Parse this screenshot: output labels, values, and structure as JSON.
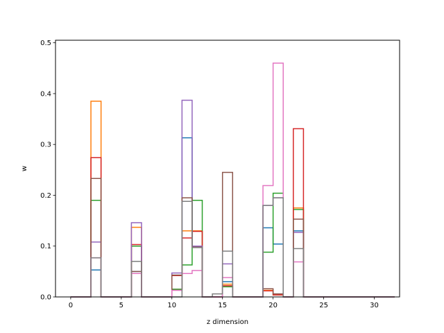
{
  "chart_data": {
    "type": "step",
    "xlabel": "z dimension",
    "ylabel": "w",
    "xlim": [
      -1.5,
      32.5
    ],
    "ylim": [
      0,
      0.505
    ],
    "xticks": [
      0,
      5,
      10,
      15,
      20,
      25,
      30
    ],
    "yticks": [
      0.0,
      0.1,
      0.2,
      0.3,
      0.4,
      0.5
    ],
    "xtick_labels": [
      "0",
      "5",
      "10",
      "15",
      "20",
      "25",
      "30"
    ],
    "ytick_labels": [
      "0.0",
      "0.1",
      "0.2",
      "0.3",
      "0.4",
      "0.5"
    ],
    "grid": false,
    "legend": "none",
    "bins": [
      0,
      32
    ],
    "series": [
      {
        "color": "#1f77b4",
        "bars": {
          "2": 0.053,
          "6": 0.05,
          "10": 0.015,
          "11": 0.313,
          "12": 0.1,
          "15": 0.03,
          "19": 0.136,
          "20": 0.104,
          "22": 0.13
        }
      },
      {
        "color": "#ff7f0e",
        "bars": {
          "2": 0.385,
          "6": 0.137,
          "10": 0.015,
          "11": 0.13,
          "12": 0.13,
          "15": 0.025,
          "19": 0.013,
          "20": 0.004,
          "22": 0.175
        }
      },
      {
        "color": "#2ca02c",
        "bars": {
          "2": 0.19,
          "6": 0.1,
          "10": 0.015,
          "11": 0.063,
          "12": 0.19,
          "15": 0.02,
          "19": 0.088,
          "20": 0.204,
          "22": 0.172
        }
      },
      {
        "color": "#d62728",
        "bars": {
          "2": 0.274,
          "6": 0.103,
          "10": 0.042,
          "11": 0.116,
          "12": 0.129,
          "15": 0.022,
          "19": 0.012,
          "20": 0.004,
          "22": 0.331
        }
      },
      {
        "color": "#9467bd",
        "bars": {
          "2": 0.108,
          "6": 0.146,
          "10": 0.047,
          "11": 0.387,
          "12": 0.1,
          "15": 0.065,
          "19": 0.18,
          "20": 0.195,
          "22": 0.127
        }
      },
      {
        "color": "#8c564b",
        "bars": {
          "2": 0.233,
          "6": 0.05,
          "10": 0.043,
          "11": 0.195,
          "12": 0.098,
          "15": 0.245,
          "19": 0.016,
          "20": 0.006,
          "22": 0.153
        }
      },
      {
        "color": "#e377c2",
        "bars": {
          "2": 0.077,
          "6": 0.046,
          "10": 0.013,
          "11": 0.046,
          "12": 0.052,
          "15": 0.038,
          "19": 0.219,
          "20": 0.46,
          "22": 0.069
        }
      },
      {
        "color": "#7f7f7f",
        "bars": {
          "2": 0.077,
          "6": 0.07,
          "10": 0.0,
          "11": 0.188,
          "12": 0.097,
          "14": 0.006,
          "15": 0.09,
          "19": 0.18,
          "20": 0.195,
          "22": 0.095
        }
      }
    ]
  }
}
